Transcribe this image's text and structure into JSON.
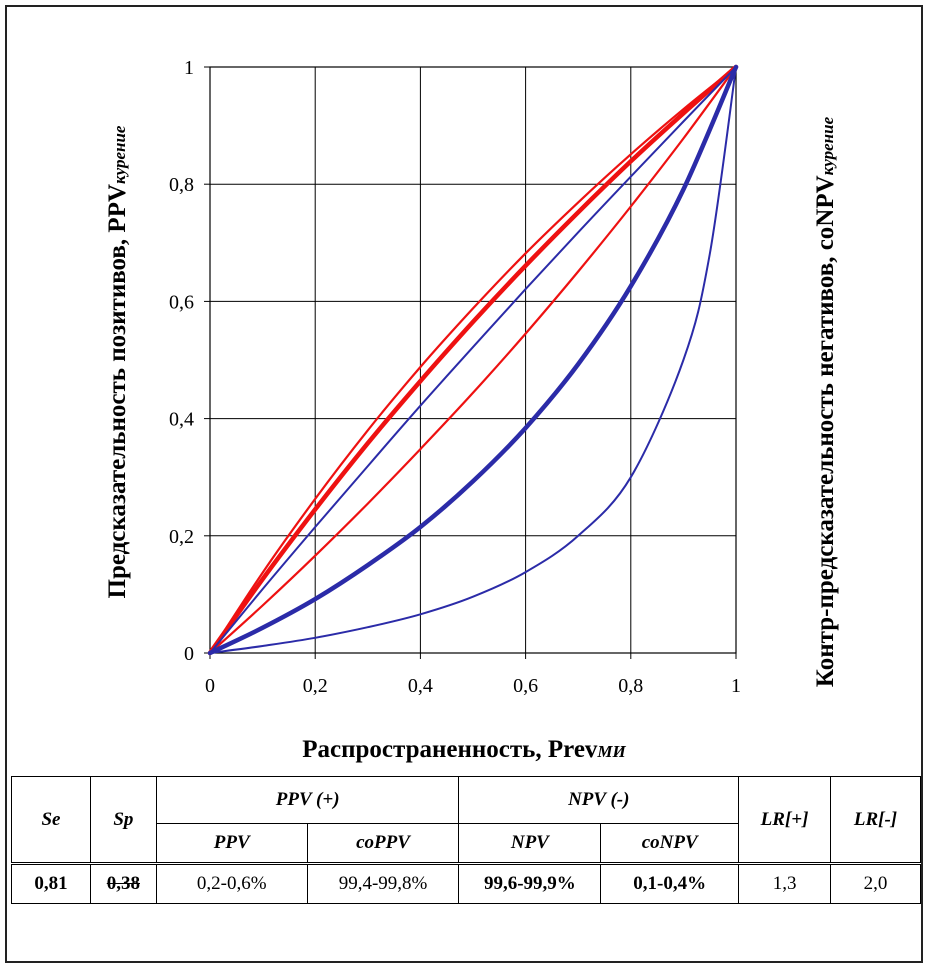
{
  "chart_data": {
    "type": "line",
    "ylabel_main": "Предсказательность позитивов, PPV",
    "ylabel_sub": "курение",
    "y2label_main": "Контр-предсказательность негативов, coNPV",
    "y2label_sub": "курение",
    "xlabel_main": "Распространенность, Prev",
    "xlabel_sub": "МИ",
    "xlim": [
      0,
      1
    ],
    "ylim": [
      0,
      1
    ],
    "grid": true,
    "x_ticks": [
      "0",
      "0,2",
      "0,4",
      "0,6",
      "0,8",
      "1"
    ],
    "y_ticks": [
      "0",
      "0,2",
      "0,4",
      "0,6",
      "0,8",
      "1"
    ],
    "series": [
      {
        "color": "#ee1111",
        "width": 4.5,
        "x": [
          0,
          0.1,
          0.2,
          0.3,
          0.4,
          0.5,
          0.6,
          0.7,
          0.8,
          0.9,
          1
        ],
        "y": [
          0,
          0.126,
          0.245,
          0.358,
          0.464,
          0.565,
          0.661,
          0.752,
          0.839,
          0.921,
          1
        ]
      },
      {
        "color": "#ee1111",
        "width": 2.2,
        "x": [
          0,
          0.1,
          0.2,
          0.3,
          0.4,
          0.5,
          0.6,
          0.7,
          0.8,
          0.9,
          1
        ],
        "y": [
          0,
          0.137,
          0.263,
          0.38,
          0.488,
          0.588,
          0.682,
          0.769,
          0.851,
          0.928,
          1
        ]
      },
      {
        "color": "#ee1111",
        "width": 2.2,
        "x": [
          0,
          0.1,
          0.2,
          0.3,
          0.4,
          0.5,
          0.6,
          0.7,
          0.8,
          0.9,
          1
        ],
        "y": [
          0,
          0.081,
          0.166,
          0.255,
          0.348,
          0.444,
          0.545,
          0.651,
          0.762,
          0.878,
          1
        ]
      },
      {
        "color": "#2b2ba8",
        "width": 2.0,
        "x": [
          0,
          0.1,
          0.2,
          0.3,
          0.4,
          0.5,
          0.6,
          0.7,
          0.8,
          0.9,
          1
        ],
        "y": [
          0,
          0.109,
          0.215,
          0.319,
          0.422,
          0.522,
          0.621,
          0.718,
          0.813,
          0.907,
          1
        ]
      },
      {
        "color": "#2b2ba8",
        "width": 4.5,
        "x": [
          0,
          0.1,
          0.2,
          0.3,
          0.4,
          0.5,
          0.6,
          0.7,
          0.8,
          0.9,
          1
        ],
        "y": [
          0,
          0.043,
          0.092,
          0.15,
          0.215,
          0.293,
          0.384,
          0.493,
          0.626,
          0.791,
          1
        ]
      },
      {
        "color": "#2b2ba8",
        "width": 2.0,
        "x": [
          0,
          0.1,
          0.2,
          0.3,
          0.4,
          0.5,
          0.6,
          0.7,
          0.8,
          0.9,
          0.95,
          1
        ],
        "y": [
          0,
          0.012,
          0.026,
          0.044,
          0.066,
          0.096,
          0.138,
          0.2,
          0.3,
          0.5,
          0.68,
          1
        ]
      }
    ]
  },
  "table": {
    "se_h": "Se",
    "sp_h": "Sp",
    "ppv_group": "PPV (+)",
    "npv_group": "NPV (-)",
    "lrp_h": "LR[+]",
    "lrn_h": "LR[-]",
    "ppv_h": "PPV",
    "coppv_h": "coPPV",
    "npv_h": "NPV",
    "conpv_h": "coNPV",
    "se_v": "0,81",
    "sp_v": "0,38",
    "ppv_v": "0,2-0,6%",
    "coppv_v": "99,4-99,8%",
    "npv_v": "99,6-99,9%",
    "conpv_v": "0,1-0,4%",
    "lrp_v": "1,3",
    "lrn_v": "2,0"
  }
}
